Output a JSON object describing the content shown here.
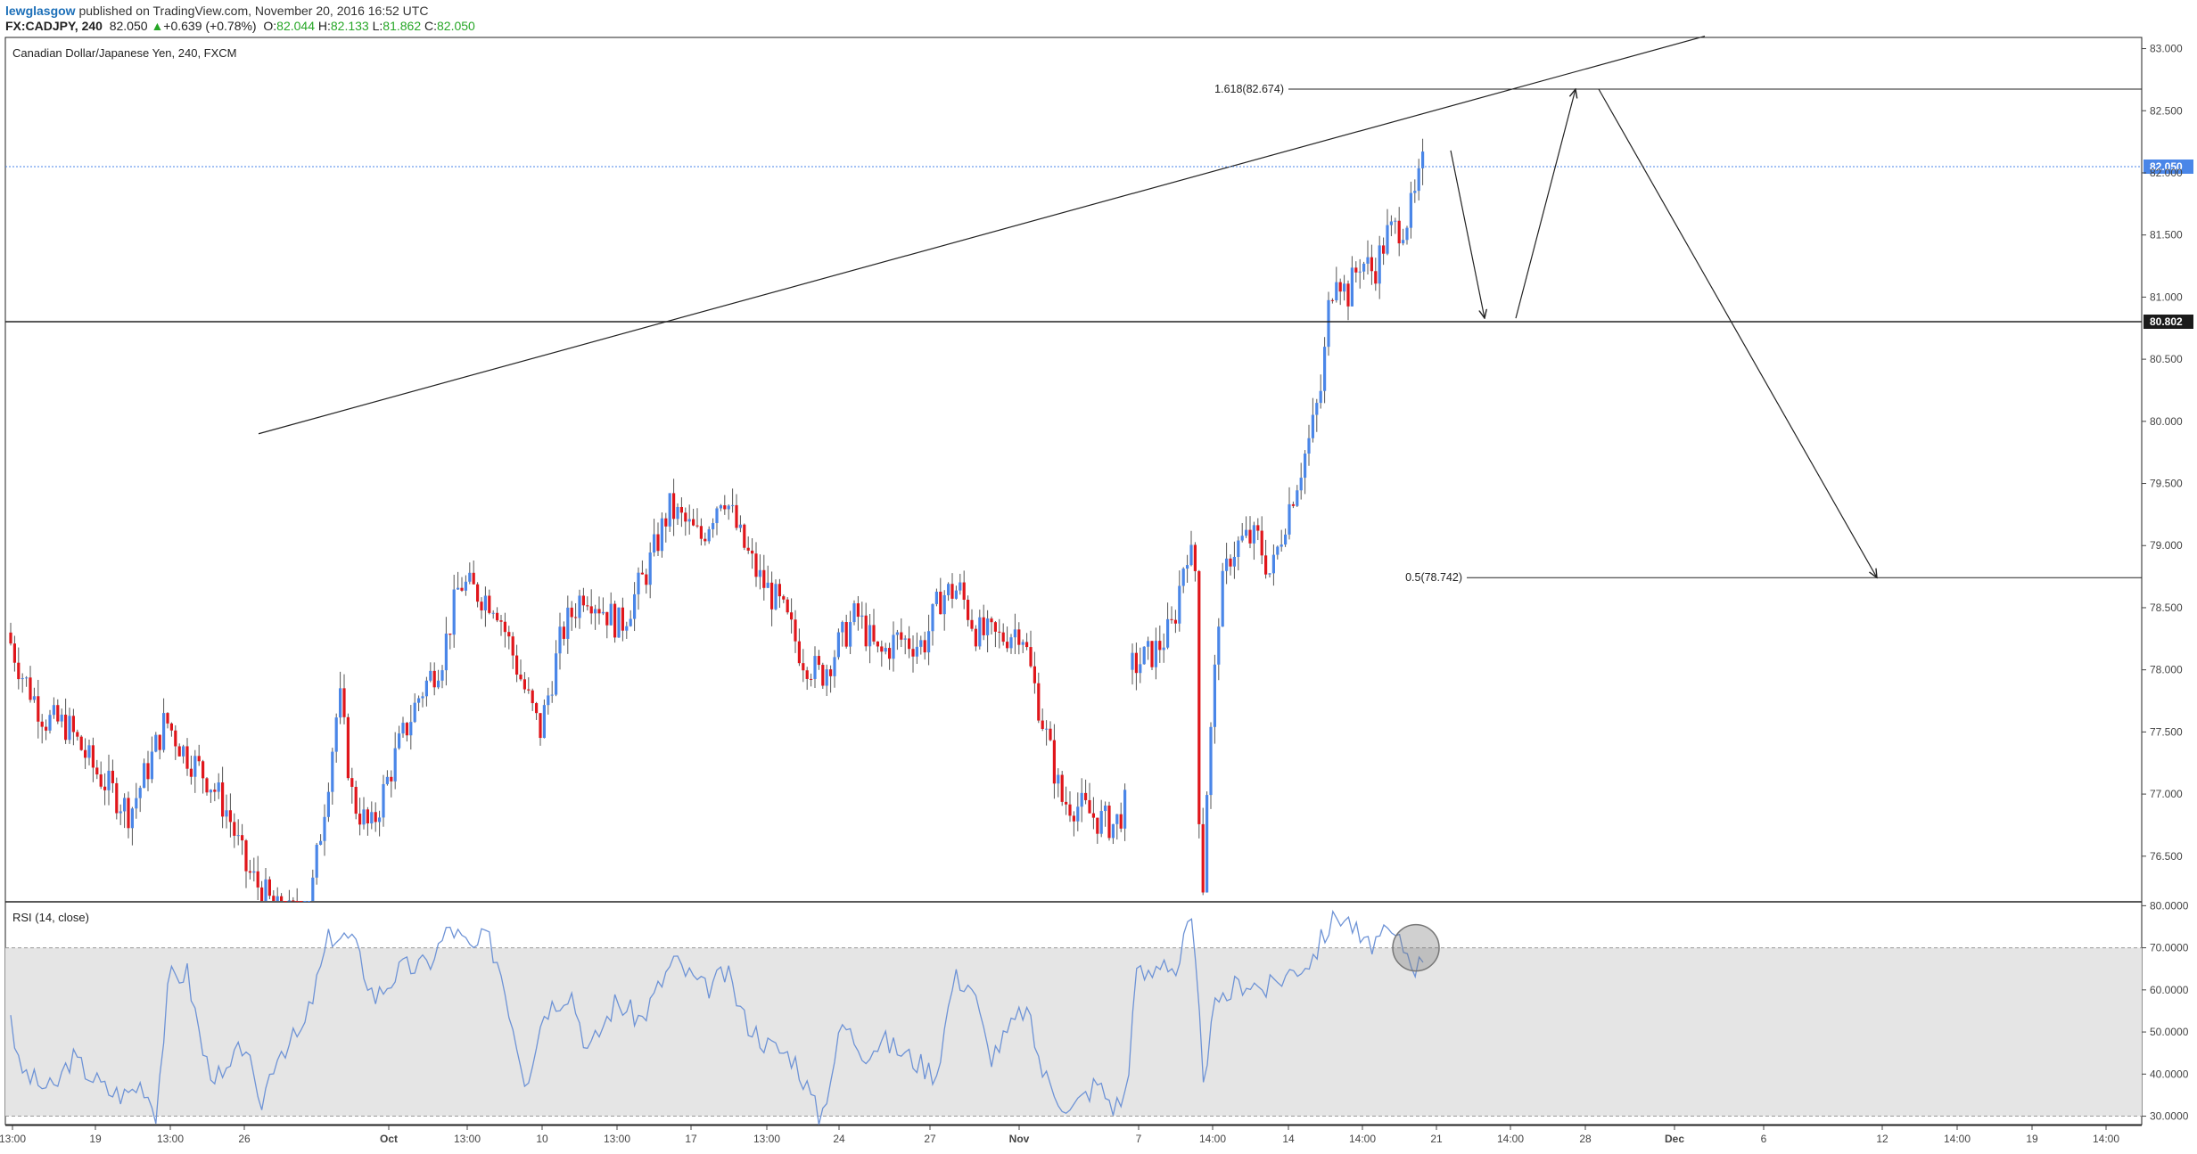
{
  "header": {
    "author": "lewglasgow",
    "published": "published on TradingView.com, November 20, 2016 16:52 UTC",
    "symbol": "FX:CADJPY, 240",
    "last": "82.050",
    "change_arrow": "▲",
    "change": "+0.639 (+0.78%)",
    "o_label": "O:",
    "o_value": "82.044",
    "h_label": "H:",
    "h_value": "82.133",
    "l_label": "L:",
    "l_value": "81.862",
    "c_label": "C:",
    "c_value": "82.050"
  },
  "colors": {
    "up": "#4a86e8",
    "down": "#e0161b",
    "rsi_line": "#6e93d6",
    "rsi_band": "#e5e5e5",
    "price_badge": "#4a86e8",
    "level_badge": "#1a1a1a"
  },
  "chart_data": [
    {
      "type": "candlestick",
      "title": "Canadian Dollar/Japanese Yen, 240, FXCM",
      "ylim": [
        76.14,
        83.09
      ],
      "y_ticks": [
        "83.000",
        "82.500",
        "82.000",
        "81.500",
        "81.000",
        "80.500",
        "80.000",
        "79.500",
        "79.000",
        "78.500",
        "78.000",
        "77.500",
        "77.000",
        "76.500"
      ],
      "x_ticks": [
        "13:00",
        "19",
        "13:00",
        "26",
        "Oct",
        "13:00",
        "10",
        "13:00",
        "17",
        "13:00",
        "24",
        "27",
        "Nov",
        "7",
        "14:00",
        "14",
        "14:00",
        "21",
        "14:00",
        "28",
        "Dec",
        "6",
        "12",
        "14:00",
        "19",
        "14:00"
      ],
      "current_price": "82.050",
      "horizontal_level": "80.802",
      "annotations": [
        {
          "label": "1.618(82.674)",
          "value": 82.674
        },
        {
          "label": "0.5(78.742)",
          "value": 78.742
        }
      ],
      "trendline": {
        "from": 79.9,
        "to": 83.1
      }
    },
    {
      "type": "line",
      "title": "RSI (14, close)",
      "ylim": [
        28,
        80.5
      ],
      "y_ticks": [
        "80.0000",
        "70.0000",
        "60.0000",
        "50.0000",
        "40.0000",
        "30.0000"
      ],
      "band": [
        30,
        70
      ]
    }
  ]
}
